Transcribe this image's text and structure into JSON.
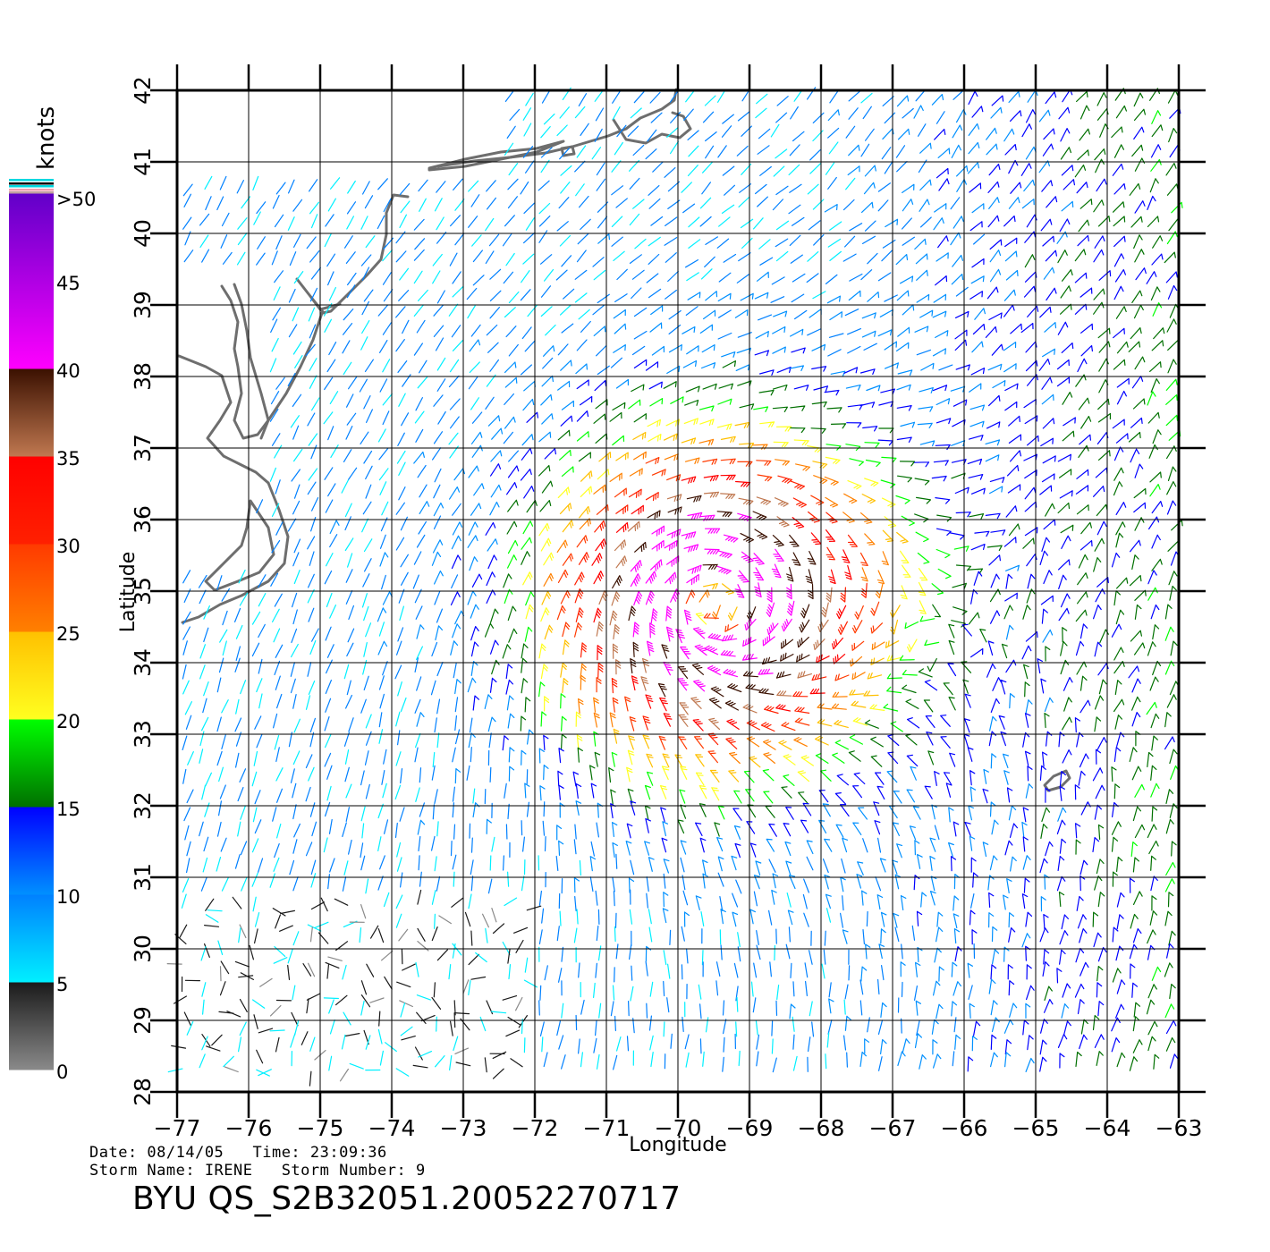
{
  "map": {
    "xlabel": "Longitude",
    "ylabel": "Latitude",
    "lon_range": [
      -77,
      -63
    ],
    "lat_range": [
      28,
      42
    ],
    "lon_ticks": [
      "−77",
      "−76",
      "−75",
      "−74",
      "−73",
      "−72",
      "−71",
      "−70",
      "−69",
      "−68",
      "−67",
      "−66",
      "−65",
      "−64",
      "−63"
    ],
    "lat_ticks": [
      "28",
      "29",
      "30",
      "31",
      "32",
      "33",
      "34",
      "35",
      "36",
      "37",
      "38",
      "39",
      "40",
      "41",
      "42"
    ],
    "storm_center": {
      "lon": -69.5,
      "lat": 34.8
    }
  },
  "legend": {
    "title": "knots",
    "labels": [
      ">50",
      "45",
      "40",
      "35",
      "30",
      "25",
      "20",
      "15",
      "10",
      "5",
      "0"
    ],
    "bands": [
      {
        "min": 0,
        "max": 5,
        "colors": [
          "#8a8a8a",
          "#1a1a1a"
        ]
      },
      {
        "min": 5,
        "max": 10,
        "colors": [
          "#00f0ff",
          "#0080ff"
        ]
      },
      {
        "min": 10,
        "max": 15,
        "colors": [
          "#0090ff",
          "#0000ff"
        ]
      },
      {
        "min": 15,
        "max": 20,
        "colors": [
          "#007000",
          "#00ff00"
        ]
      },
      {
        "min": 20,
        "max": 25,
        "colors": [
          "#ffff20",
          "#ffc000"
        ]
      },
      {
        "min": 25,
        "max": 30,
        "colors": [
          "#ff8000",
          "#ff3a00"
        ]
      },
      {
        "min": 30,
        "max": 35,
        "colors": [
          "#ff2000",
          "#ff0000"
        ]
      },
      {
        "min": 35,
        "max": 40,
        "colors": [
          "#c07850",
          "#3a1000"
        ]
      },
      {
        "min": 40,
        "max": 50,
        "colors": [
          "#ff00ff",
          "#6000c8"
        ]
      }
    ]
  },
  "footer": {
    "date_line": "Date: 08/14/05   Time: 23:09:36",
    "storm_line": "Storm Name: IRENE   Storm Number: 9",
    "file_id": "BYU QS_S2B32051.20052270717"
  }
}
